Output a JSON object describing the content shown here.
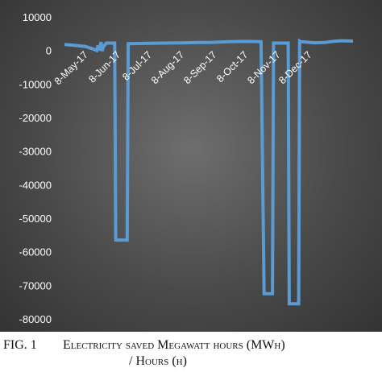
{
  "chart_data": {
    "type": "line",
    "title": "",
    "xlabel": "",
    "ylabel": "",
    "ylim": [
      -80000,
      10000
    ],
    "yticks": [
      10000,
      0,
      -10000,
      -20000,
      -30000,
      -40000,
      -50000,
      -60000,
      -70000,
      -80000
    ],
    "ytick_labels": [
      "10000",
      "0",
      "-10000",
      "-20000",
      "-30000",
      "-40000",
      "-50000",
      "-60000",
      "-70000",
      "-80000"
    ],
    "xlim": [
      "2017-04-15",
      "2018-01-16"
    ],
    "xticks": [
      "2017-05-08",
      "2017-06-08",
      "2017-07-08",
      "2017-08-08",
      "2017-09-08",
      "2017-10-08",
      "2017-11-08",
      "2017-12-08"
    ],
    "xtick_labels": [
      "8-May-17",
      "8-Jun-17",
      "8-Jul-17",
      "8-Aug-17",
      "8-Sep-17",
      "8-Oct-17",
      "8-Nov-17",
      "8-Dec-17"
    ],
    "grid": false,
    "legend": "none",
    "line_color": "#5b9bd5",
    "series": [
      {
        "x": [
          "2017-04-15",
          "2017-04-25",
          "2017-05-05",
          "2017-05-12",
          "2017-05-16",
          "2017-05-17",
          "2017-05-18",
          "2017-05-20",
          "2017-05-21",
          "2017-05-22",
          "2017-05-25",
          "2017-06-02",
          "2017-06-03",
          "2017-06-04",
          "2017-06-14",
          "2017-06-15",
          "2017-06-16",
          "2017-06-30",
          "2017-07-20",
          "2017-08-10",
          "2017-08-20",
          "2017-09-01",
          "2017-09-20",
          "2017-10-05",
          "2017-10-20",
          "2017-10-23",
          "2017-10-24",
          "2017-10-25",
          "2017-10-31",
          "2017-11-01",
          "2017-11-02",
          "2017-11-15",
          "2017-11-16",
          "2017-11-17",
          "2017-11-25",
          "2017-11-26",
          "2017-11-27",
          "2017-12-10",
          "2017-12-20",
          "2017-12-28",
          "2018-01-05",
          "2018-01-16"
        ],
        "y": [
          1800,
          1500,
          1200,
          500,
          0,
          1500,
          0,
          2500,
          -200,
          1000,
          2200,
          2200,
          -56500,
          -56500,
          -56500,
          2000,
          2000,
          2100,
          2200,
          2300,
          2400,
          2400,
          2600,
          2700,
          2600,
          -72500,
          -72500,
          -72500,
          -72500,
          2200,
          2200,
          2200,
          -75500,
          -75500,
          -75500,
          2800,
          2600,
          2300,
          2400,
          2700,
          2900,
          2800
        ]
      }
    ]
  },
  "caption": {
    "figure_label": "FIG. 1",
    "line1": "Electricity saved Megawatt hours (MWh)",
    "line2": "/ Hours (h)"
  }
}
